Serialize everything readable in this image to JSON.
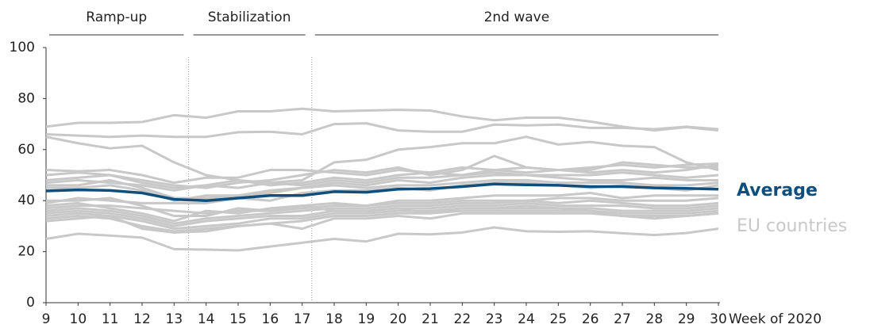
{
  "chart_data": {
    "type": "line",
    "x_label": "Week of 2020",
    "x": [
      9,
      10,
      11,
      12,
      13,
      14,
      15,
      16,
      17,
      18,
      19,
      20,
      21,
      22,
      23,
      24,
      25,
      26,
      27,
      28,
      29,
      30
    ],
    "xlim": [
      9,
      30
    ],
    "xticks": [
      9,
      10,
      11,
      12,
      13,
      14,
      15,
      16,
      17,
      18,
      19,
      20,
      21,
      22,
      23,
      24,
      25,
      26,
      27,
      28,
      29,
      30
    ],
    "ylim": [
      0,
      100
    ],
    "yticks": [
      0,
      20,
      40,
      60,
      80,
      100
    ],
    "grid": false,
    "phases": [
      {
        "label": "Ramp-up",
        "start": 9.1,
        "end": 13.3
      },
      {
        "label": "Stabilization",
        "start": 13.6,
        "end": 17.1
      },
      {
        "label": "2nd wave",
        "start": 17.4,
        "end": 30
      }
    ],
    "dividers": [
      13.45,
      17.3
    ],
    "background_series": {
      "name": "EU countries",
      "color": "#c8c8c8",
      "lines": [
        [
          69,
          70.5,
          70.5,
          70.8,
          73.5,
          72.5,
          75,
          75,
          76,
          75,
          75.3,
          75.6,
          75.3,
          73,
          71.5,
          72.5,
          72.5,
          71,
          69,
          67.5,
          68.8,
          67.5
        ],
        [
          66,
          65.5,
          65,
          65.5,
          65,
          65,
          66.8,
          67,
          66,
          70,
          70.3,
          67.5,
          67,
          67,
          69.8,
          69.5,
          69.8,
          68.5,
          68.5,
          68,
          69,
          68
        ],
        [
          65,
          62.5,
          60.5,
          61.5,
          55,
          50,
          48,
          47,
          48,
          55,
          56,
          60,
          61,
          62.5,
          62.5,
          65,
          62,
          63,
          61.5,
          61,
          55,
          52
        ],
        [
          25,
          27,
          26.3,
          25.5,
          21,
          20.8,
          20.5,
          22,
          23.5,
          25,
          24,
          27,
          26.8,
          27.5,
          29.5,
          28,
          27.8,
          28,
          27.2,
          26.5,
          27.3,
          29
        ],
        [
          52,
          51.5,
          52,
          50,
          47,
          49,
          49,
          52,
          52,
          51,
          50,
          52,
          51,
          53,
          52,
          53,
          52,
          53,
          54,
          53,
          54,
          54.5
        ],
        [
          50,
          51,
          50,
          48,
          46,
          45,
          47,
          48,
          50,
          52,
          51,
          53,
          50,
          52,
          57.5,
          53,
          52,
          52,
          55,
          54,
          53,
          53
        ],
        [
          48,
          49,
          50,
          47,
          45,
          46,
          48,
          46,
          47,
          49,
          48,
          50,
          51,
          50,
          52,
          51,
          52,
          51,
          52,
          51,
          52,
          54
        ],
        [
          47,
          48,
          47,
          46,
          44,
          46,
          45,
          47,
          46,
          48,
          47,
          49,
          49,
          50,
          51,
          50,
          50,
          50,
          51,
          50,
          49,
          50
        ],
        [
          46,
          46,
          48,
          45,
          41,
          41,
          42,
          44,
          45,
          47,
          46,
          48,
          47,
          49,
          50,
          50,
          49,
          48,
          48,
          49,
          48,
          48
        ],
        [
          45,
          45,
          46,
          44,
          40,
          42,
          42,
          43,
          45,
          46,
          45,
          46,
          46,
          47,
          48,
          48,
          47,
          47,
          47,
          46,
          46,
          47
        ],
        [
          39,
          41,
          40,
          39,
          39,
          39,
          41,
          40,
          43,
          44,
          44,
          45,
          44,
          46,
          47,
          47,
          46,
          45,
          46,
          45,
          44,
          46
        ],
        [
          38,
          39,
          37,
          35,
          32,
          36,
          35,
          37,
          38,
          39,
          38,
          40,
          40,
          41,
          42,
          42,
          42,
          43,
          41,
          42,
          42,
          42
        ],
        [
          37,
          38,
          38,
          37,
          36,
          35,
          36,
          36,
          37,
          38,
          38,
          39,
          39,
          40,
          40,
          40,
          41,
          41,
          40,
          40,
          40,
          41
        ],
        [
          36,
          37,
          36,
          34,
          31,
          33,
          34,
          35,
          36,
          37,
          37,
          38,
          38,
          39,
          39,
          40,
          39,
          40,
          39,
          38,
          38,
          39
        ],
        [
          35,
          36,
          35,
          33,
          30,
          32,
          33,
          34,
          34,
          36,
          36,
          37,
          37,
          38,
          38,
          39,
          38,
          38,
          38,
          37,
          37,
          38
        ],
        [
          34,
          35,
          34,
          32,
          29,
          30,
          31,
          33,
          33,
          35,
          35,
          36,
          36,
          37,
          37,
          37,
          37,
          37,
          36,
          36,
          36,
          37
        ],
        [
          33,
          34,
          33,
          30,
          28,
          29,
          30,
          31,
          32,
          34,
          34,
          35,
          35,
          36,
          36,
          36,
          36,
          36,
          35,
          35,
          35,
          36
        ],
        [
          32,
          33,
          34,
          29,
          27.5,
          28,
          30,
          31,
          29,
          33,
          33,
          34,
          33,
          35,
          35,
          35,
          35,
          35,
          34,
          34,
          34,
          35
        ],
        [
          40,
          40,
          41,
          38,
          34,
          34,
          37,
          36,
          38,
          36,
          36,
          37,
          35,
          37,
          37,
          38,
          37,
          36,
          34,
          33,
          34,
          35
        ]
      ]
    },
    "series": [
      {
        "name": "Average",
        "color": "#0e4f7d",
        "values": [
          43.8,
          44.2,
          44,
          43,
          40.5,
          40,
          41,
          42,
          42,
          43.5,
          43.3,
          44.5,
          44.7,
          45.5,
          46.5,
          46.2,
          46,
          45.5,
          45.5,
          45,
          44.8,
          44.5
        ]
      }
    ]
  }
}
